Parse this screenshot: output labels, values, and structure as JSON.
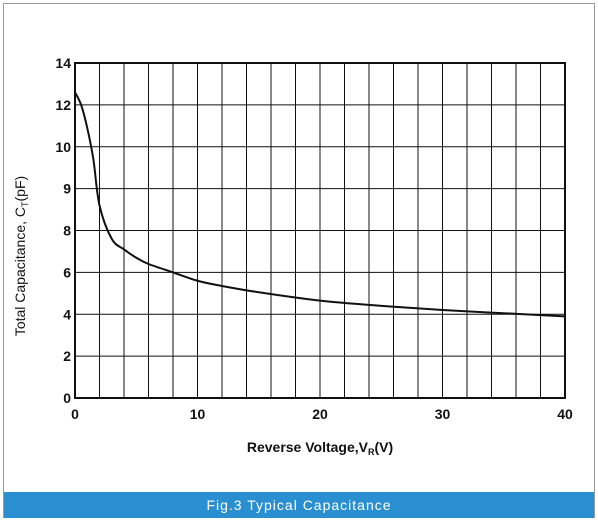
{
  "chart_data": {
    "type": "line",
    "xlabel": "Reverse Voltage,V",
    "xlabel_subscript": "R",
    "xlabel_suffix": "(V)",
    "ylabel": "Total Capacitance, C",
    "ylabel_subscript": "T",
    "ylabel_suffix": "(pF)",
    "xlim": [
      0,
      40
    ],
    "x_ticks": [
      "0",
      "10",
      "20",
      "30",
      "40"
    ],
    "y_ticks": [
      "0",
      "2",
      "4",
      "6",
      "8",
      "9",
      "10",
      "12",
      "14"
    ],
    "grid": true,
    "series": [
      {
        "x": [
          0,
          0.5,
          1,
          1.5,
          2,
          3,
          4,
          5,
          6,
          8,
          10,
          12,
          15,
          20,
          25,
          30,
          35,
          40
        ],
        "y": [
          12.6,
          12.0,
          10.9,
          9.7,
          8.6,
          7.6,
          7.1,
          6.7,
          6.4,
          6.0,
          5.6,
          5.35,
          5.05,
          4.65,
          4.4,
          4.2,
          4.05,
          3.9
        ]
      }
    ]
  },
  "figure": {
    "caption": "Fig.3 Typical  Capacitance",
    "colors": {
      "caption_bar": "#2a8fd0",
      "curve": "#111111",
      "grid": "#111111"
    }
  }
}
